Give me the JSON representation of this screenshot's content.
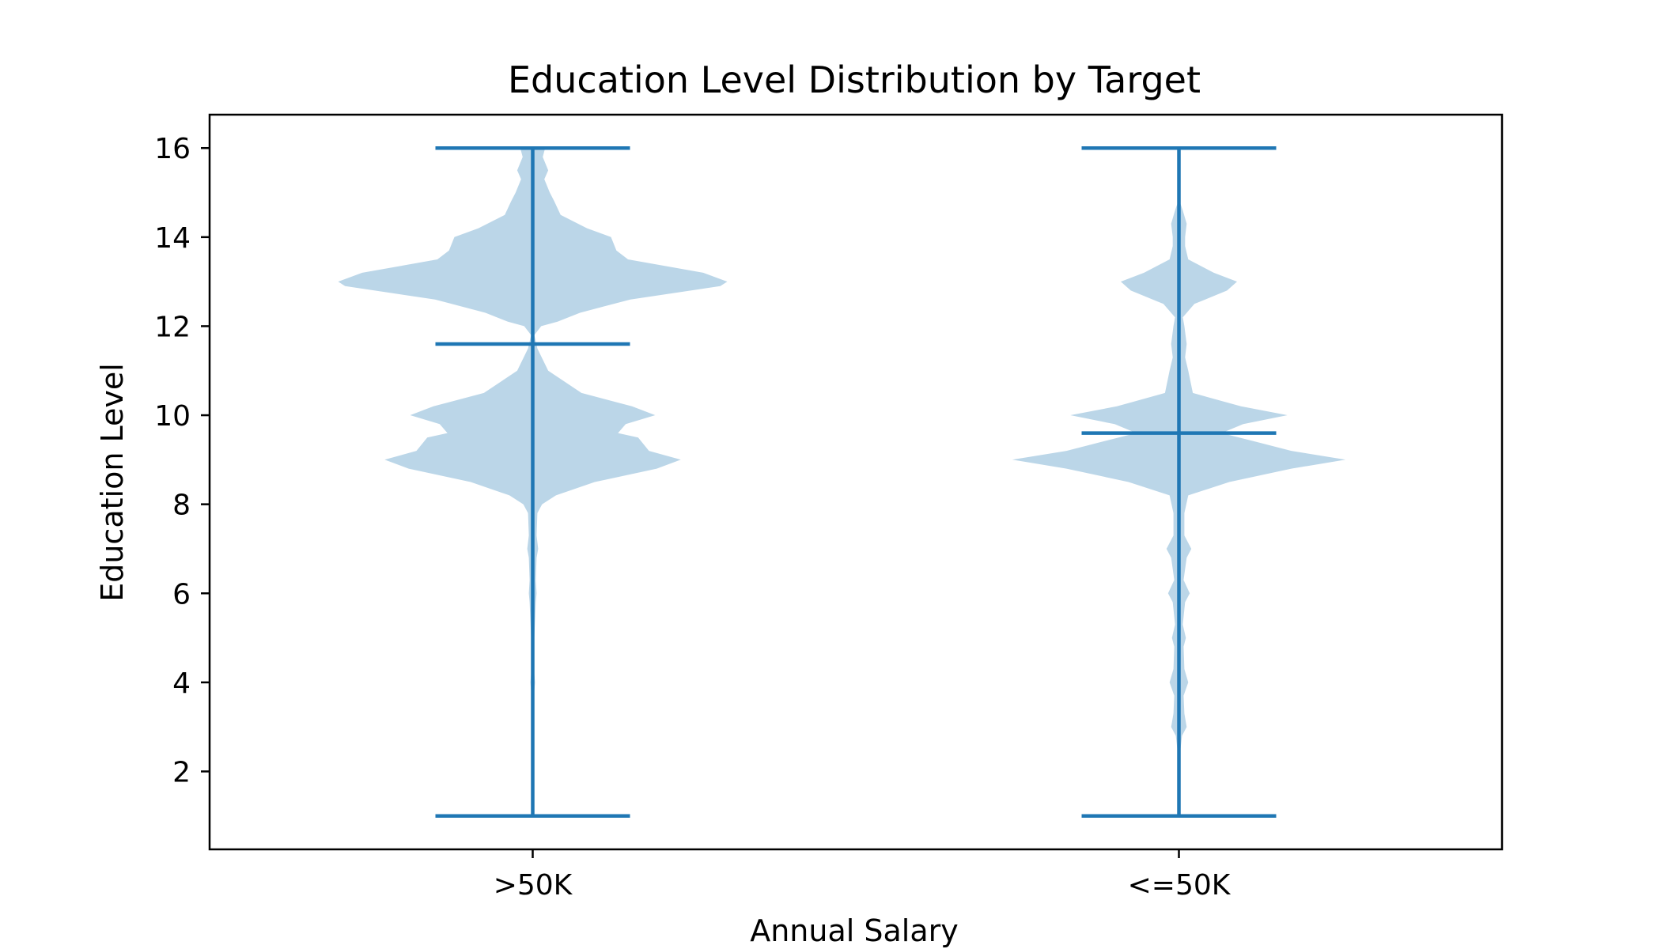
{
  "chart_data": {
    "type": "violin",
    "title": "Education Level Distribution by Target",
    "xlabel": "Annual Salary",
    "ylabel": "Education Level",
    "ylim": [
      0.25,
      16.75
    ],
    "yticks": [
      2,
      4,
      6,
      8,
      10,
      12,
      14,
      16
    ],
    "grid": false,
    "colors": {
      "body": "#1f77b4",
      "line": "#1f77b4",
      "body_opacity": 0.3
    },
    "categories": [
      ">50K",
      "<=50K"
    ],
    "series": [
      {
        "name": ">50K",
        "min": 1,
        "max": 16,
        "mean": 11.6,
        "density": [
          [
            1,
            0
          ],
          [
            3.7,
            0
          ],
          [
            3.8,
            0.02
          ],
          [
            4,
            0.03
          ],
          [
            4.2,
            0.02
          ],
          [
            5,
            0.02
          ],
          [
            5.8,
            0.04
          ],
          [
            6,
            0.05
          ],
          [
            6.3,
            0.04
          ],
          [
            6.8,
            0.05
          ],
          [
            7,
            0.07
          ],
          [
            7.3,
            0.05
          ],
          [
            7.8,
            0.06
          ],
          [
            8,
            0.12
          ],
          [
            8.2,
            0.3
          ],
          [
            8.5,
            0.8
          ],
          [
            8.8,
            1.6
          ],
          [
            9,
            1.91
          ],
          [
            9.2,
            1.5
          ],
          [
            9.5,
            1.36
          ],
          [
            9.6,
            1.1
          ],
          [
            9.8,
            1.2
          ],
          [
            10,
            1.58
          ],
          [
            10.2,
            1.28
          ],
          [
            10.5,
            0.63
          ],
          [
            11,
            0.2
          ],
          [
            11.5,
            0.06
          ],
          [
            11.8,
            0.02
          ],
          [
            12,
            0.11
          ],
          [
            12.1,
            0.32
          ],
          [
            12.3,
            0.61
          ],
          [
            12.6,
            1.26
          ],
          [
            12.9,
            2.42
          ],
          [
            13,
            2.51
          ],
          [
            13.2,
            2.2
          ],
          [
            13.5,
            1.23
          ],
          [
            13.7,
            1.08
          ],
          [
            14,
            1.01
          ],
          [
            14.2,
            0.7
          ],
          [
            14.5,
            0.36
          ],
          [
            14.8,
            0.28
          ],
          [
            15,
            0.22
          ],
          [
            15.3,
            0.15
          ],
          [
            15.5,
            0.2
          ],
          [
            15.8,
            0.13
          ],
          [
            16,
            0.16
          ]
        ]
      },
      {
        "name": "<=50K",
        "min": 1,
        "max": 16,
        "mean": 9.6,
        "density": [
          [
            1,
            0
          ],
          [
            2.5,
            0.02
          ],
          [
            2.8,
            0.04
          ],
          [
            3,
            0.1
          ],
          [
            3.3,
            0.07
          ],
          [
            3.7,
            0.06
          ],
          [
            4,
            0.12
          ],
          [
            4.3,
            0.07
          ],
          [
            4.8,
            0.06
          ],
          [
            5,
            0.09
          ],
          [
            5.3,
            0.05
          ],
          [
            5.8,
            0.08
          ],
          [
            6,
            0.14
          ],
          [
            6.3,
            0.06
          ],
          [
            6.8,
            0.1
          ],
          [
            7,
            0.16
          ],
          [
            7.3,
            0.07
          ],
          [
            7.8,
            0.07
          ],
          [
            8.2,
            0.12
          ],
          [
            8.5,
            0.65
          ],
          [
            8.8,
            1.45
          ],
          [
            9,
            2.15
          ],
          [
            9.2,
            1.45
          ],
          [
            9.4,
            1.0
          ],
          [
            9.6,
            0.55
          ],
          [
            9.8,
            0.83
          ],
          [
            10,
            1.4
          ],
          [
            10.2,
            0.8
          ],
          [
            10.5,
            0.18
          ],
          [
            11,
            0.12
          ],
          [
            11.3,
            0.08
          ],
          [
            11.6,
            0.1
          ],
          [
            12,
            0.07
          ],
          [
            12.2,
            0.05
          ],
          [
            12.5,
            0.2
          ],
          [
            12.8,
            0.62
          ],
          [
            13,
            0.75
          ],
          [
            13.2,
            0.45
          ],
          [
            13.5,
            0.12
          ],
          [
            13.8,
            0.08
          ],
          [
            14,
            0.08
          ],
          [
            14.3,
            0.1
          ],
          [
            14.6,
            0.05
          ],
          [
            14.8,
            0.01
          ]
        ]
      }
    ]
  }
}
